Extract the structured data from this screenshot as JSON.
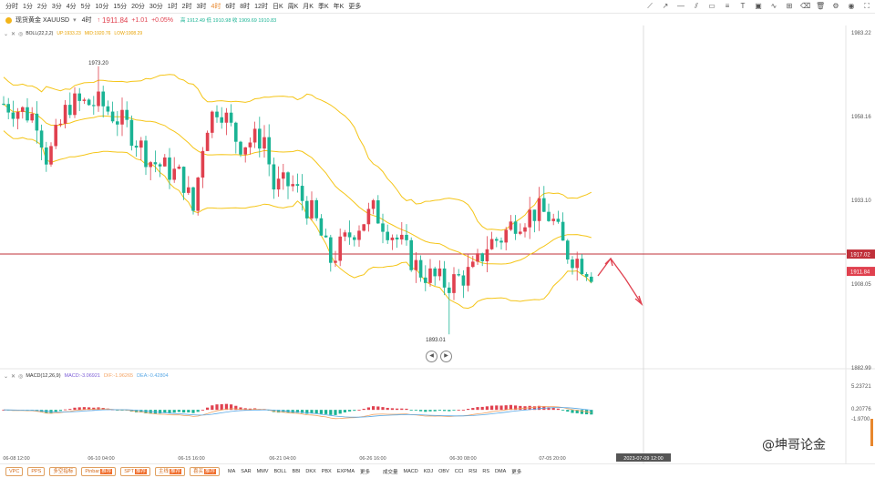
{
  "toolbar": {
    "timeframes": [
      "分时",
      "1分",
      "2分",
      "3分",
      "4分",
      "5分",
      "10分",
      "15分",
      "20分",
      "30分",
      "1时",
      "2时",
      "3时",
      "4时",
      "6时",
      "8时",
      "12时",
      "日K",
      "周K",
      "月K",
      "季K",
      "年K",
      "更多"
    ],
    "active_timeframe": "4时"
  },
  "symbol": {
    "name": "现货黄金 XAUUSD",
    "interval": "4时",
    "price": "1911.84",
    "change": "+1.01",
    "change_pct": "+0.05%",
    "ohlc_text": "高 1912.49 低 1910.98 收 1909.69 1910.83"
  },
  "boll": {
    "label": "BOLL(22,2,2)",
    "up": "UP:1933.23",
    "mid": "MID:1920.76",
    "low": "LOW:1908.29"
  },
  "macd": {
    "label": "MACD(12,26,9)",
    "macd": "MACD:-3.06921",
    "dif": "DIF:-1.96265",
    "dea": "DEA:-0.42804"
  },
  "price_axis": {
    "labels": [
      "1983.22",
      "1958.16",
      "1933.10",
      "1908.05",
      "1882.99"
    ],
    "tags": {
      "line": "1917.02",
      "current": "1911.84"
    }
  },
  "macd_axis": {
    "labels": [
      "5.23721",
      "0.20776",
      "-1.9700"
    ]
  },
  "annotations": {
    "high": "1973.20",
    "low": "1893.01"
  },
  "time_axis": {
    "labels": [
      "06-08 12:00",
      "06-10 04:00",
      "06-15 16:00",
      "06-21 04:00",
      "06-26 16:00",
      "06-30 08:00",
      "07-05 20:00"
    ],
    "cursor": "2023-07-09 12:00"
  },
  "bottom": {
    "buttons": [
      {
        "label": "VPC",
        "badge": ""
      },
      {
        "label": "PPS",
        "badge": ""
      },
      {
        "label": "多空指标",
        "badge": ""
      },
      {
        "label": "Pinbar",
        "badge": "推荐"
      },
      {
        "label": "SPT",
        "badge": "推荐"
      },
      {
        "label": "主线",
        "badge": "推荐"
      },
      {
        "label": "喜买",
        "badge": "推荐"
      }
    ],
    "main_indicators": [
      "MA",
      "SAR",
      "MMV",
      "BOLL",
      "BBI",
      "DKX",
      "PBX",
      "EXPMA",
      "更多"
    ],
    "sub_indicators": [
      "成交量",
      "MACD",
      "KDJ",
      "OBV",
      "CCI",
      "RSI",
      "RS",
      "DMA",
      "更多"
    ]
  },
  "watermark": "@坤哥论金",
  "colors": {
    "up": "#e0414f",
    "down": "#1ab394",
    "boll": "#f5c518",
    "accent": "#e8872d",
    "macd_dif": "#5aa9e6",
    "macd_dea": "#f4a261"
  }
}
